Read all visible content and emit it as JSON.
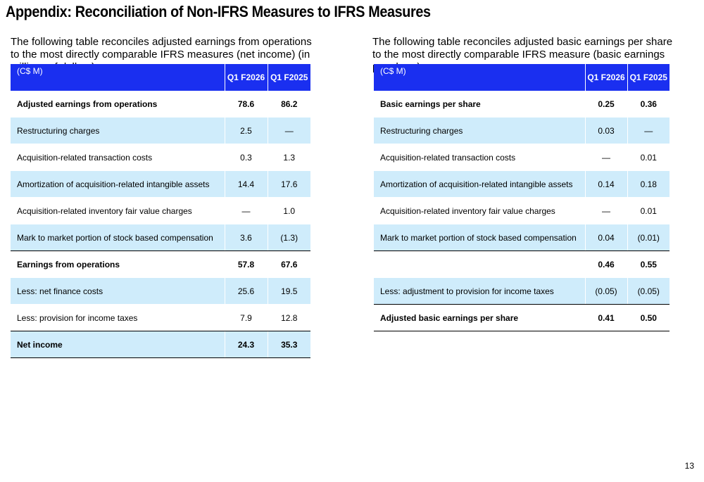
{
  "title": "Appendix: Reconciliation of Non-IFRS Measures to IFRS Measures",
  "left": {
    "intro": "The following table reconciles adjusted earnings from operations to the most directly comparable IFRS measures (net income) (in millions of dollars):",
    "unit_label": "(C$ M)",
    "col1": "Q1 F2026",
    "col2": "Q1 F2025",
    "rows": [
      {
        "label": "Adjusted earnings from operations",
        "v1": "78.6",
        "v2": "86.2"
      },
      {
        "label": "Restructuring charges",
        "v1": "2.5",
        "v2": "—"
      },
      {
        "label": "Acquisition-related transaction costs",
        "v1": "0.3",
        "v2": "1.3"
      },
      {
        "label": "Amortization of acquisition-related intangible assets",
        "v1": "14.4",
        "v2": "17.6"
      },
      {
        "label": "Acquisition-related inventory fair value charges",
        "v1": "—",
        "v2": "1.0"
      },
      {
        "label": "Mark to market portion of stock based compensation",
        "v1": "3.6",
        "v2": "(1.3)"
      },
      {
        "label": "Earnings from operations",
        "v1": "57.8",
        "v2": "67.6"
      },
      {
        "label": "Less: net finance costs",
        "v1": "25.6",
        "v2": "19.5"
      },
      {
        "label": "Less: provision for income taxes",
        "v1": "7.9",
        "v2": "12.8"
      },
      {
        "label": "Net income",
        "v1": "24.3",
        "v2": "35.3"
      }
    ]
  },
  "right": {
    "intro": "The following table reconciles adjusted basic earnings per share to the most directly comparable IFRS measure (basic earnings per share):",
    "unit_label": "(C$ M)",
    "col1": "Q1 F2026",
    "col2": "Q1 F2025",
    "rows": [
      {
        "label": "Basic earnings per share",
        "v1": "0.25",
        "v2": "0.36"
      },
      {
        "label": "Restructuring charges",
        "v1": "0.03",
        "v2": "—"
      },
      {
        "label": "Acquisition-related transaction costs",
        "v1": "—",
        "v2": "0.01"
      },
      {
        "label": "Amortization of acquisition-related intangible assets",
        "v1": "0.14",
        "v2": "0.18"
      },
      {
        "label": "Acquisition-related inventory fair value charges",
        "v1": "—",
        "v2": "0.01"
      },
      {
        "label": "Mark to market portion of stock based compensation",
        "v1": "0.04",
        "v2": "(0.01)"
      },
      {
        "label": "",
        "v1": "0.46",
        "v2": "0.55"
      },
      {
        "label": "Less: adjustment to provision for income taxes",
        "v1": "(0.05)",
        "v2": "(0.05)"
      },
      {
        "label": "Adjusted basic earnings per share",
        "v1": "0.41",
        "v2": "0.50"
      }
    ]
  },
  "page_number": "13",
  "colors": {
    "header_blue": "#1a2ff0",
    "row_shade": "#cfecfb"
  }
}
